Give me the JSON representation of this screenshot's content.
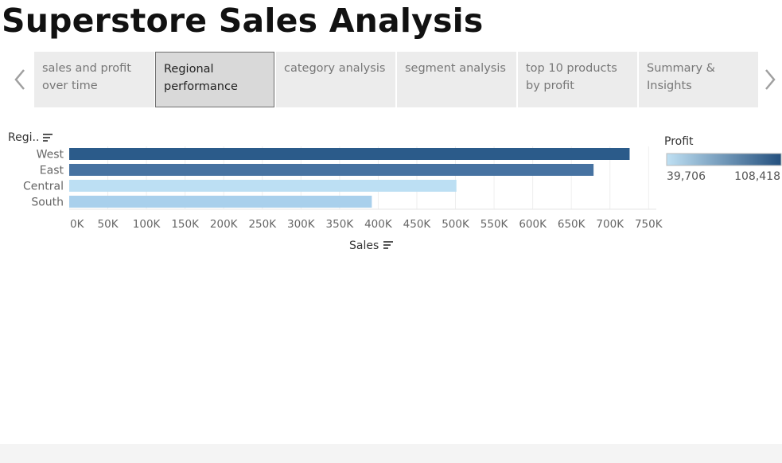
{
  "page": {
    "title": "Superstore Sales Analysis"
  },
  "tabs": [
    {
      "label": "sales and profit over time",
      "active": false
    },
    {
      "label": "Regional performance",
      "active": true
    },
    {
      "label": "category analysis",
      "active": false
    },
    {
      "label": "segment analysis",
      "active": false
    },
    {
      "label": "top 10 products by profit",
      "active": false
    },
    {
      "label": "Summary & Insights",
      "active": false
    }
  ],
  "nav": {
    "prev_icon": "chevron-left-icon",
    "next_icon": "chevron-right-icon"
  },
  "sort_icon": "sort-icon",
  "legend": {
    "title": "Profit",
    "min_label": "39,706",
    "max_label": "108,418",
    "color_low": "#bfe0f3",
    "color_high": "#24507e"
  },
  "chart_data": {
    "type": "bar",
    "orientation": "horizontal",
    "y_header": "Regi..",
    "xlabel": "Sales",
    "categories": [
      "West",
      "East",
      "Central",
      "South"
    ],
    "values": [
      725458,
      678781,
      501240,
      391722
    ],
    "profit": [
      108418,
      91523,
      39706,
      46749
    ],
    "colors": [
      "#2b5b8a",
      "#4672a1",
      "#bcdff3",
      "#a9d0ec"
    ],
    "xlim": [
      0,
      760000
    ],
    "x_ticks": [
      0,
      50000,
      100000,
      150000,
      200000,
      250000,
      300000,
      350000,
      400000,
      450000,
      500000,
      550000,
      600000,
      650000,
      700000,
      750000
    ],
    "x_tick_labels": [
      "0K",
      "50K",
      "100K",
      "150K",
      "200K",
      "250K",
      "300K",
      "350K",
      "400K",
      "450K",
      "500K",
      "550K",
      "600K",
      "650K",
      "700K",
      "750K"
    ],
    "grid": true
  }
}
